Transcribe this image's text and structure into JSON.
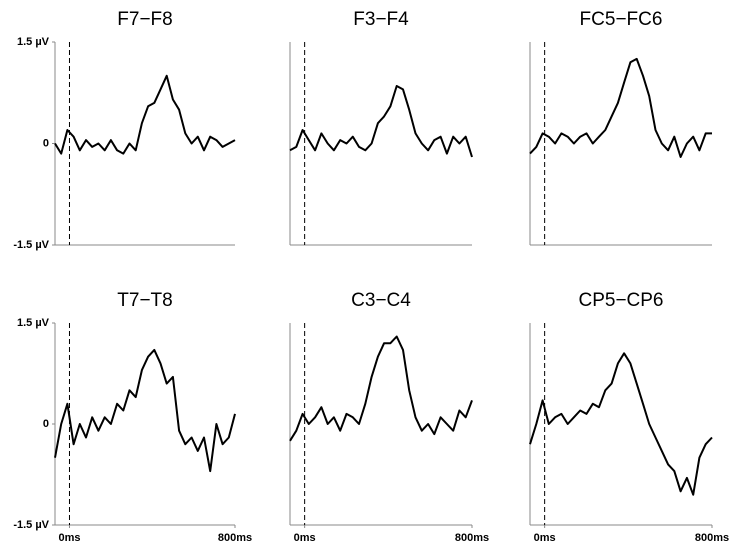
{
  "chart_data": [
    {
      "type": "line",
      "title": "F7−F8",
      "color": "#000000",
      "xlim": [
        -70,
        800
      ],
      "ylim": [
        -1.5,
        1.5
      ],
      "marker_x": 0,
      "yticks": [
        {
          "value": 1.5,
          "label": "1.5 µV"
        },
        0,
        {
          "value": -1.5,
          "label": "-1.5 µV"
        }
      ],
      "x": [
        -70,
        -40,
        -10,
        20,
        50,
        80,
        110,
        140,
        170,
        200,
        230,
        260,
        290,
        320,
        350,
        380,
        410,
        440,
        470,
        500,
        530,
        560,
        590,
        620,
        650,
        680,
        710,
        740,
        770,
        800
      ],
      "values": [
        0.0,
        -0.15,
        0.2,
        0.1,
        -0.1,
        0.05,
        -0.05,
        0.0,
        -0.1,
        0.05,
        -0.1,
        -0.15,
        0.0,
        -0.1,
        0.3,
        0.55,
        0.6,
        0.8,
        1.0,
        0.65,
        0.5,
        0.15,
        0.0,
        0.1,
        -0.1,
        0.1,
        0.05,
        -0.05,
        0.0,
        0.05
      ]
    },
    {
      "type": "line",
      "title": "F3−F4",
      "color": "#000000",
      "xlim": [
        -70,
        800
      ],
      "ylim": [
        -1.5,
        1.5
      ],
      "marker_x": 0,
      "x": [
        -70,
        -40,
        -10,
        20,
        50,
        80,
        110,
        140,
        170,
        200,
        230,
        260,
        290,
        320,
        350,
        380,
        410,
        440,
        470,
        500,
        530,
        560,
        590,
        620,
        650,
        680,
        710,
        740,
        770,
        800
      ],
      "values": [
        -0.1,
        -0.05,
        0.2,
        0.05,
        -0.1,
        0.15,
        0.0,
        -0.1,
        0.05,
        0.0,
        0.1,
        -0.05,
        -0.1,
        0.0,
        0.3,
        0.4,
        0.55,
        0.85,
        0.8,
        0.5,
        0.15,
        0.0,
        -0.1,
        0.05,
        0.1,
        -0.15,
        0.1,
        0.0,
        0.1,
        -0.2
      ]
    },
    {
      "type": "line",
      "title": "FC5−FC6",
      "color": "#000000",
      "xlim": [
        -70,
        800
      ],
      "ylim": [
        -1.5,
        1.5
      ],
      "marker_x": 0,
      "x": [
        -70,
        -40,
        -10,
        20,
        50,
        80,
        110,
        140,
        170,
        200,
        230,
        260,
        290,
        320,
        350,
        380,
        410,
        440,
        470,
        500,
        530,
        560,
        590,
        620,
        650,
        680,
        710,
        740,
        770,
        800
      ],
      "values": [
        -0.15,
        -0.05,
        0.15,
        0.1,
        0.0,
        0.15,
        0.1,
        0.0,
        0.1,
        0.15,
        0.0,
        0.1,
        0.2,
        0.4,
        0.6,
        0.9,
        1.2,
        1.25,
        1.0,
        0.7,
        0.2,
        0.0,
        -0.1,
        0.1,
        -0.2,
        0.0,
        0.1,
        -0.1,
        0.15,
        0.15
      ]
    },
    {
      "type": "line",
      "title": "T7−T8",
      "color": "#000000",
      "xlim": [
        -70,
        800
      ],
      "ylim": [
        -1.5,
        1.5
      ],
      "marker_x": 0,
      "yticks": [
        {
          "value": 1.5,
          "label": "1.5 µV"
        },
        0,
        {
          "value": -1.5,
          "label": "-1.5 µV"
        }
      ],
      "xticks": [
        {
          "value": 0,
          "label": "0ms"
        },
        {
          "value": 800,
          "label": "800ms"
        }
      ],
      "x": [
        -70,
        -40,
        -10,
        20,
        50,
        80,
        110,
        140,
        170,
        200,
        230,
        260,
        290,
        320,
        350,
        380,
        410,
        440,
        470,
        500,
        530,
        560,
        590,
        620,
        650,
        680,
        710,
        740,
        770,
        800
      ],
      "values": [
        -0.5,
        0.0,
        0.3,
        -0.3,
        0.0,
        -0.2,
        0.1,
        -0.1,
        0.1,
        0.0,
        0.3,
        0.2,
        0.5,
        0.4,
        0.8,
        1.0,
        1.1,
        0.9,
        0.6,
        0.7,
        -0.1,
        -0.3,
        -0.2,
        -0.4,
        -0.2,
        -0.7,
        0.0,
        -0.3,
        -0.2,
        0.15
      ]
    },
    {
      "type": "line",
      "title": "C3−C4",
      "color": "#000000",
      "xlim": [
        -70,
        800
      ],
      "ylim": [
        -1.5,
        1.5
      ],
      "marker_x": 0,
      "xticks": [
        {
          "value": 0,
          "label": "0ms"
        },
        {
          "value": 800,
          "label": "800ms"
        }
      ],
      "x": [
        -70,
        -40,
        -10,
        20,
        50,
        80,
        110,
        140,
        170,
        200,
        230,
        260,
        290,
        320,
        350,
        380,
        410,
        440,
        470,
        500,
        530,
        560,
        590,
        620,
        650,
        680,
        710,
        740,
        770,
        800
      ],
      "values": [
        -0.25,
        -0.1,
        0.15,
        0.0,
        0.1,
        0.25,
        0.0,
        0.1,
        -0.1,
        0.15,
        0.1,
        0.0,
        0.3,
        0.7,
        1.0,
        1.2,
        1.2,
        1.3,
        1.1,
        0.5,
        0.1,
        -0.1,
        0.0,
        -0.15,
        0.1,
        0.0,
        -0.1,
        0.2,
        0.1,
        0.35
      ]
    },
    {
      "type": "line",
      "title": "CP5−CP6",
      "color": "#000000",
      "xlim": [
        -70,
        800
      ],
      "ylim": [
        -1.5,
        1.5
      ],
      "marker_x": 0,
      "xticks": [
        {
          "value": 0,
          "label": "0ms"
        },
        {
          "value": 800,
          "label": "800ms"
        }
      ],
      "x": [
        -70,
        -40,
        -10,
        20,
        50,
        80,
        110,
        140,
        170,
        200,
        230,
        260,
        290,
        320,
        350,
        380,
        410,
        440,
        470,
        500,
        530,
        560,
        590,
        620,
        650,
        680,
        710,
        740,
        770,
        800
      ],
      "values": [
        -0.3,
        0.0,
        0.35,
        0.0,
        0.1,
        0.15,
        0.0,
        0.1,
        0.2,
        0.15,
        0.3,
        0.25,
        0.5,
        0.6,
        0.9,
        1.05,
        0.9,
        0.6,
        0.3,
        0.0,
        -0.2,
        -0.4,
        -0.6,
        -0.7,
        -1.0,
        -0.8,
        -1.05,
        -0.5,
        -0.3,
        -0.2
      ]
    }
  ]
}
